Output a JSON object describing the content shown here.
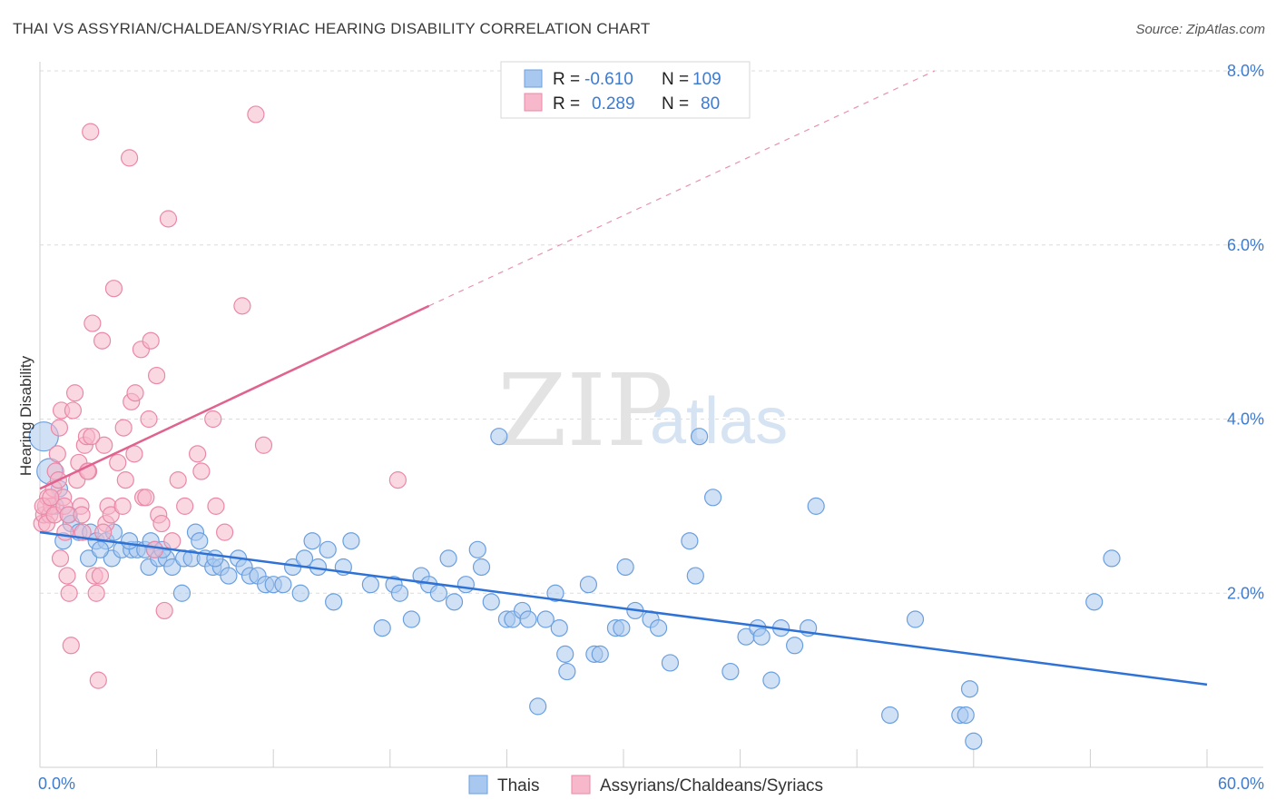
{
  "title": "THAI VS ASSYRIAN/CHALDEAN/SYRIAC HEARING DISABILITY CORRELATION CHART",
  "source": "Source: ZipAtlas.com",
  "watermark": {
    "zip": "ZIP",
    "atlas": "atlas"
  },
  "colors": {
    "thais_fill": "#a9c8ef",
    "thais_stroke": "#6a9fdf",
    "thais_line": "#2f72d6",
    "assyrians_fill": "#f6b8ca",
    "assyrians_stroke": "#ea88a7",
    "assyrians_line": "#e0628f",
    "axis_text": "#3d7bd1",
    "grid": "#dcdcdc"
  },
  "legend": {
    "rows": [
      {
        "r_label": "R =",
        "r_value": "-0.610",
        "n_label": "N =",
        "n_value": "109"
      },
      {
        "r_label": "R =",
        "r_value": "0.289",
        "n_label": "N =",
        "n_value": "80"
      }
    ]
  },
  "bottom_legend": {
    "thais": "Thais",
    "assyrians": "Assyrians/Chaldeans/Syriacs"
  },
  "chart_data": {
    "type": "scatter",
    "ylabel": "Hearing Disability",
    "xlim": [
      0,
      60
    ],
    "ylim": [
      0,
      8
    ],
    "y_ticks": [
      "2.0%",
      "4.0%",
      "6.0%",
      "8.0%"
    ],
    "y_tick_values": [
      2,
      4,
      6,
      8
    ],
    "x_tick_labels": {
      "left": "0.0%",
      "right": "60.0%"
    },
    "series": [
      {
        "name": "Thais",
        "trend": {
          "x0": 0,
          "y0": 2.7,
          "x1": 60,
          "y1": 0.95
        },
        "points": [
          [
            0.2,
            3.8
          ],
          [
            0.5,
            3.4
          ],
          [
            1.0,
            3.2
          ],
          [
            0.8,
            3.0
          ],
          [
            1.5,
            2.9
          ],
          [
            1.6,
            2.8
          ],
          [
            2.0,
            2.7
          ],
          [
            2.6,
            2.7
          ],
          [
            2.9,
            2.6
          ],
          [
            3.4,
            2.6
          ],
          [
            3.8,
            2.7
          ],
          [
            2.5,
            2.4
          ],
          [
            3.7,
            2.4
          ],
          [
            4.2,
            2.5
          ],
          [
            4.7,
            2.5
          ],
          [
            5.0,
            2.5
          ],
          [
            5.4,
            2.5
          ],
          [
            5.7,
            2.6
          ],
          [
            5.9,
            2.5
          ],
          [
            5.6,
            2.3
          ],
          [
            6.1,
            2.4
          ],
          [
            6.5,
            2.4
          ],
          [
            6.8,
            2.3
          ],
          [
            7.4,
            2.4
          ],
          [
            7.8,
            2.4
          ],
          [
            8.0,
            2.7
          ],
          [
            8.2,
            2.6
          ],
          [
            8.5,
            2.4
          ],
          [
            8.9,
            2.3
          ],
          [
            9.3,
            2.3
          ],
          [
            9.7,
            2.2
          ],
          [
            7.3,
            2.0
          ],
          [
            10.2,
            2.4
          ],
          [
            10.5,
            2.3
          ],
          [
            10.8,
            2.2
          ],
          [
            11.2,
            2.2
          ],
          [
            11.6,
            2.1
          ],
          [
            12.0,
            2.1
          ],
          [
            12.5,
            2.1
          ],
          [
            13.0,
            2.3
          ],
          [
            13.4,
            2.0
          ],
          [
            13.6,
            2.4
          ],
          [
            14.0,
            2.6
          ],
          [
            14.3,
            2.3
          ],
          [
            14.8,
            2.5
          ],
          [
            15.1,
            1.9
          ],
          [
            15.6,
            2.3
          ],
          [
            16.0,
            2.6
          ],
          [
            17.0,
            2.1
          ],
          [
            17.6,
            1.6
          ],
          [
            18.2,
            2.1
          ],
          [
            18.5,
            2.0
          ],
          [
            19.1,
            1.7
          ],
          [
            19.6,
            2.2
          ],
          [
            20.0,
            2.1
          ],
          [
            20.5,
            2.0
          ],
          [
            21.0,
            2.4
          ],
          [
            21.3,
            1.9
          ],
          [
            21.9,
            2.1
          ],
          [
            22.5,
            2.5
          ],
          [
            22.7,
            2.3
          ],
          [
            23.2,
            1.9
          ],
          [
            23.6,
            3.8
          ],
          [
            24.0,
            1.7
          ],
          [
            24.3,
            1.7
          ],
          [
            24.8,
            1.8
          ],
          [
            25.1,
            1.7
          ],
          [
            25.6,
            0.7
          ],
          [
            26.0,
            1.7
          ],
          [
            26.5,
            2.0
          ],
          [
            26.7,
            1.6
          ],
          [
            27.0,
            1.3
          ],
          [
            27.1,
            1.1
          ],
          [
            28.2,
            2.1
          ],
          [
            28.5,
            1.3
          ],
          [
            28.8,
            1.3
          ],
          [
            29.6,
            1.6
          ],
          [
            29.9,
            1.6
          ],
          [
            30.1,
            2.3
          ],
          [
            30.6,
            1.8
          ],
          [
            31.4,
            1.7
          ],
          [
            31.8,
            1.6
          ],
          [
            32.4,
            1.2
          ],
          [
            33.4,
            2.6
          ],
          [
            33.7,
            2.2
          ],
          [
            33.9,
            3.8
          ],
          [
            34.6,
            3.1
          ],
          [
            35.5,
            1.1
          ],
          [
            36.3,
            1.5
          ],
          [
            36.9,
            1.6
          ],
          [
            37.1,
            1.5
          ],
          [
            37.6,
            1.0
          ],
          [
            38.1,
            1.6
          ],
          [
            38.8,
            1.4
          ],
          [
            39.5,
            1.6
          ],
          [
            39.9,
            3.0
          ],
          [
            43.7,
            0.6
          ],
          [
            45.0,
            1.7
          ],
          [
            47.3,
            0.6
          ],
          [
            47.6,
            0.6
          ],
          [
            47.8,
            0.9
          ],
          [
            48.0,
            0.3
          ],
          [
            54.2,
            1.9
          ],
          [
            55.1,
            2.4
          ],
          [
            1.2,
            2.6
          ],
          [
            3.1,
            2.5
          ],
          [
            4.6,
            2.6
          ],
          [
            6.3,
            2.5
          ],
          [
            9.0,
            2.4
          ]
        ]
      },
      {
        "name": "Assyrians/Chaldeans/Syriacs",
        "trend": {
          "x0": 0,
          "y0": 3.2,
          "x1": 20,
          "y1": 5.3,
          "dashed_to_x": 46,
          "dashed_to_y": 8.0
        },
        "points": [
          [
            0.1,
            2.8
          ],
          [
            0.2,
            2.9
          ],
          [
            0.3,
            3.0
          ],
          [
            0.4,
            3.1
          ],
          [
            0.5,
            2.9
          ],
          [
            0.6,
            3.0
          ],
          [
            0.7,
            3.2
          ],
          [
            0.8,
            3.4
          ],
          [
            0.9,
            3.6
          ],
          [
            1.0,
            3.9
          ],
          [
            1.1,
            4.1
          ],
          [
            1.2,
            3.1
          ],
          [
            1.3,
            2.7
          ],
          [
            1.4,
            2.2
          ],
          [
            1.5,
            2.0
          ],
          [
            1.6,
            1.4
          ],
          [
            1.7,
            4.1
          ],
          [
            1.8,
            4.3
          ],
          [
            1.9,
            3.3
          ],
          [
            2.0,
            3.5
          ],
          [
            2.1,
            3.0
          ],
          [
            2.2,
            2.7
          ],
          [
            2.3,
            3.7
          ],
          [
            2.4,
            3.8
          ],
          [
            2.5,
            3.4
          ],
          [
            2.6,
            7.3
          ],
          [
            2.7,
            5.1
          ],
          [
            2.8,
            2.2
          ],
          [
            2.9,
            2.0
          ],
          [
            3.0,
            1.0
          ],
          [
            3.1,
            2.2
          ],
          [
            3.2,
            4.9
          ],
          [
            3.3,
            3.7
          ],
          [
            3.4,
            2.8
          ],
          [
            3.5,
            3.0
          ],
          [
            3.8,
            5.5
          ],
          [
            4.0,
            3.5
          ],
          [
            4.3,
            3.9
          ],
          [
            4.4,
            3.3
          ],
          [
            4.6,
            7.0
          ],
          [
            4.7,
            4.2
          ],
          [
            4.9,
            4.3
          ],
          [
            5.2,
            4.8
          ],
          [
            5.3,
            3.1
          ],
          [
            5.6,
            4.0
          ],
          [
            5.7,
            4.9
          ],
          [
            5.9,
            2.5
          ],
          [
            6.0,
            4.5
          ],
          [
            6.1,
            2.9
          ],
          [
            6.4,
            1.8
          ],
          [
            6.6,
            6.3
          ],
          [
            6.8,
            2.6
          ],
          [
            7.1,
            3.3
          ],
          [
            8.1,
            3.6
          ],
          [
            8.3,
            3.4
          ],
          [
            8.9,
            4.0
          ],
          [
            9.5,
            2.7
          ],
          [
            10.4,
            5.3
          ],
          [
            11.1,
            7.5
          ],
          [
            11.5,
            3.7
          ],
          [
            18.4,
            3.3
          ],
          [
            0.15,
            3.0
          ],
          [
            0.35,
            2.8
          ],
          [
            0.55,
            3.1
          ],
          [
            0.75,
            2.9
          ],
          [
            0.95,
            3.3
          ],
          [
            1.05,
            2.4
          ],
          [
            1.25,
            3.0
          ],
          [
            1.45,
            2.9
          ],
          [
            2.15,
            2.9
          ],
          [
            2.45,
            3.4
          ],
          [
            2.65,
            3.8
          ],
          [
            3.25,
            2.7
          ],
          [
            3.65,
            2.9
          ],
          [
            4.25,
            3.0
          ],
          [
            4.85,
            3.6
          ],
          [
            5.45,
            3.1
          ],
          [
            6.25,
            2.8
          ],
          [
            7.45,
            3.0
          ],
          [
            9.05,
            3.0
          ]
        ]
      }
    ]
  }
}
